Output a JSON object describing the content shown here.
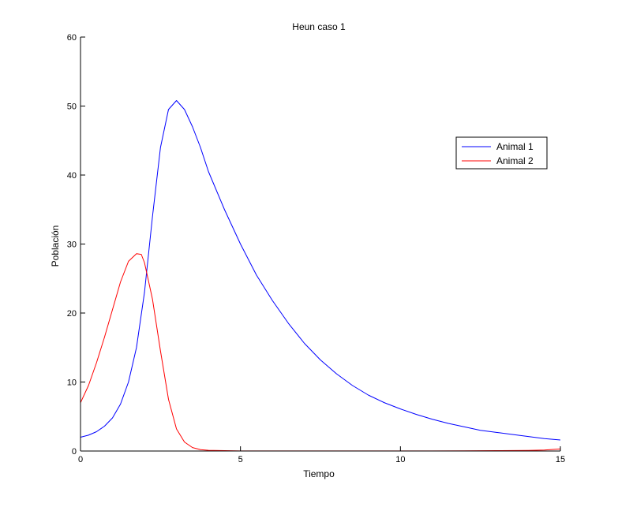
{
  "chart_data": {
    "type": "line",
    "title": "Heun caso 1",
    "xlabel": "Tiempo",
    "ylabel": "Población",
    "xlim": [
      0,
      15
    ],
    "ylim": [
      0,
      60
    ],
    "xticks": [
      0,
      5,
      10,
      15
    ],
    "yticks": [
      0,
      10,
      20,
      30,
      40,
      50,
      60
    ],
    "grid": false,
    "legend_position": "top-right",
    "series": [
      {
        "name": "Animal 1",
        "color": "#0000ff",
        "x": [
          0,
          0.25,
          0.5,
          0.75,
          1.0,
          1.25,
          1.5,
          1.75,
          2.0,
          2.25,
          2.5,
          2.75,
          3.0,
          3.25,
          3.5,
          3.75,
          4.0,
          4.5,
          5.0,
          5.5,
          6.0,
          6.5,
          7.0,
          7.5,
          8.0,
          8.5,
          9.0,
          9.5,
          10.0,
          10.5,
          11.0,
          11.5,
          12.0,
          12.5,
          13.0,
          13.5,
          14.0,
          14.5,
          15.0
        ],
        "y": [
          2.0,
          2.3,
          2.8,
          3.6,
          4.8,
          6.8,
          10.0,
          15.0,
          23.0,
          34.0,
          44.0,
          49.5,
          50.8,
          49.5,
          47.0,
          44.0,
          40.5,
          35.0,
          30.0,
          25.5,
          21.8,
          18.5,
          15.6,
          13.2,
          11.2,
          9.5,
          8.1,
          7.0,
          6.1,
          5.3,
          4.6,
          4.0,
          3.5,
          3.0,
          2.7,
          2.4,
          2.1,
          1.8,
          1.6
        ]
      },
      {
        "name": "Animal 2",
        "color": "#ff0000",
        "x": [
          0,
          0.25,
          0.5,
          0.75,
          1.0,
          1.25,
          1.5,
          1.75,
          1.9,
          2.0,
          2.25,
          2.5,
          2.75,
          3.0,
          3.25,
          3.5,
          3.75,
          4.0,
          4.5,
          5.0,
          6.0,
          7.0,
          8.0,
          9.0,
          10.0,
          11.0,
          12.0,
          13.0,
          14.0,
          14.5,
          15.0
        ],
        "y": [
          7.0,
          9.5,
          12.8,
          16.5,
          20.5,
          24.5,
          27.5,
          28.6,
          28.5,
          27.3,
          22.0,
          14.5,
          7.5,
          3.2,
          1.3,
          0.5,
          0.2,
          0.1,
          0.05,
          0.02,
          0.01,
          0.01,
          0.01,
          0.01,
          0.01,
          0.02,
          0.03,
          0.05,
          0.09,
          0.15,
          0.3
        ]
      }
    ]
  }
}
